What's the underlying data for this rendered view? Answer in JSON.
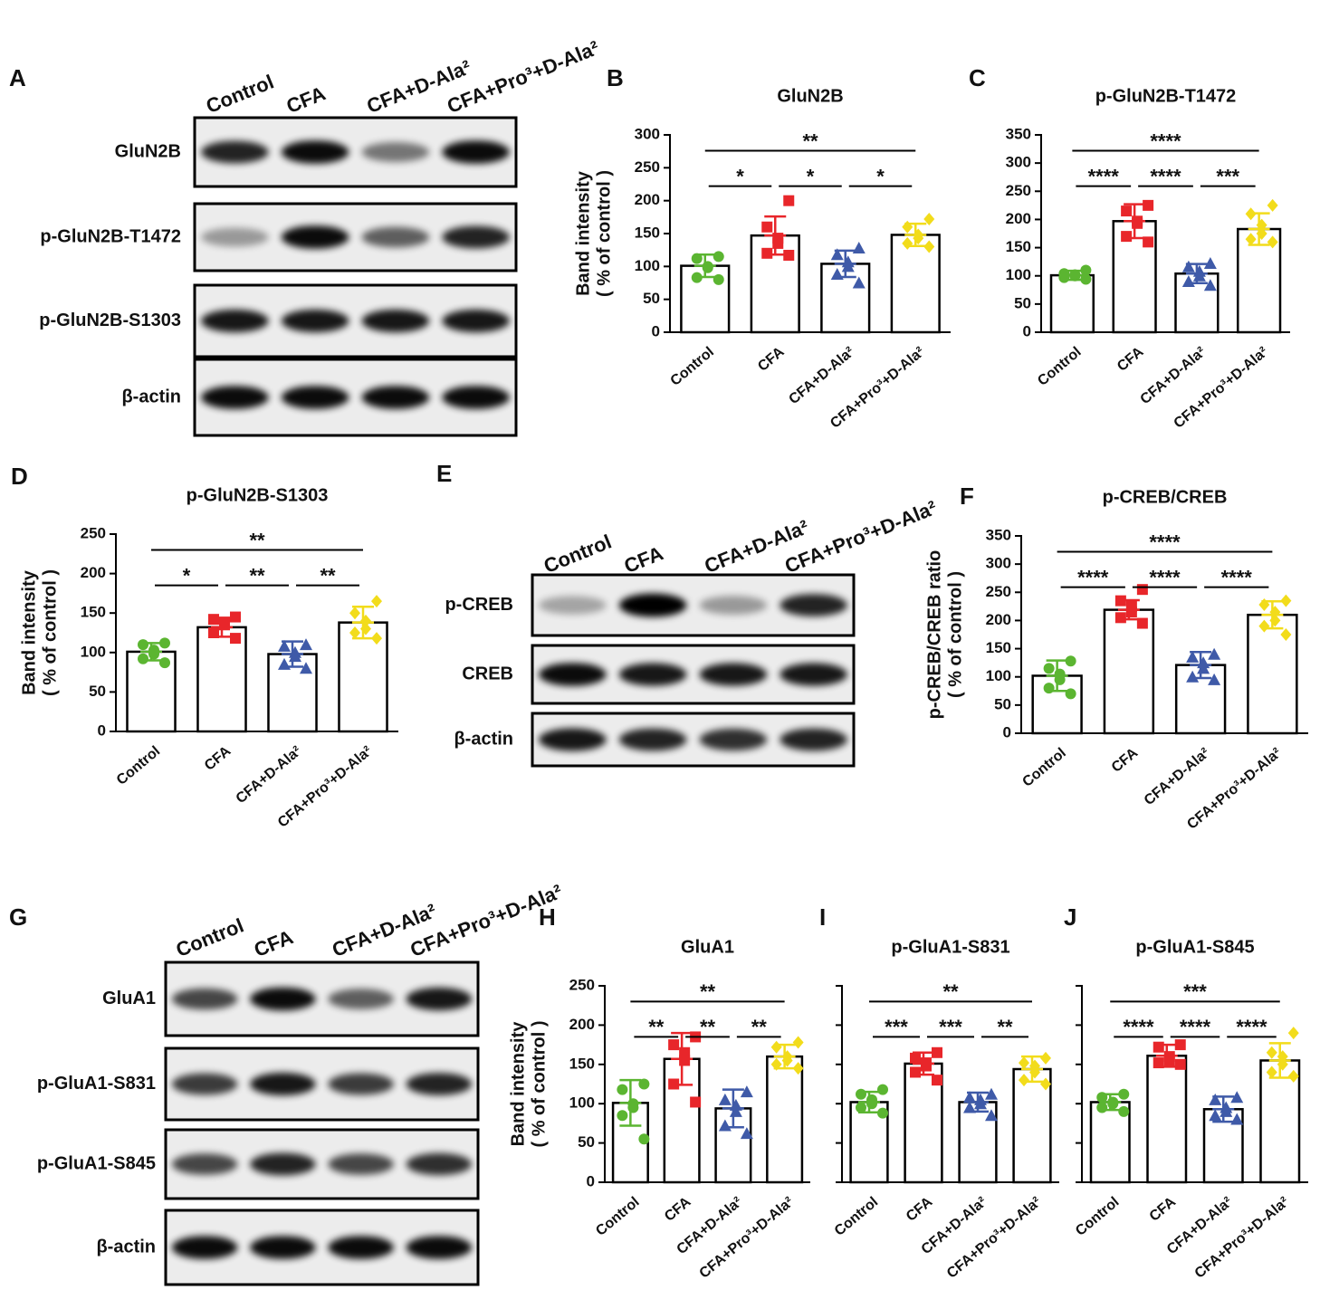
{
  "blots": [
    {
      "letter": "A",
      "columns": [
        "Control",
        "CFA",
        "CFA+D-Ala²",
        "CFA+Pro³+D-Ala²"
      ],
      "rows": [
        "GluN2B",
        "p-GluN2B-T1472",
        "p-GluN2B-S1303",
        "β-actin"
      ]
    },
    {
      "letter": "E",
      "columns": [
        "Control",
        "CFA",
        "CFA+D-Ala²",
        "CFA+Pro³+D-Ala²"
      ],
      "rows": [
        "p-CREB",
        "CREB",
        "β-actin"
      ]
    },
    {
      "letter": "G",
      "columns": [
        "Control",
        "CFA",
        "CFA+D-Ala²",
        "CFA+Pro³+D-Ala²"
      ],
      "rows": [
        "GluA1",
        "p-GluA1-S831",
        "p-GluA1-S845",
        "β-actin"
      ]
    }
  ],
  "chart_data": [
    {
      "type": "bar",
      "letter": "B",
      "title": "GluN2B",
      "ylabel": [
        "Band intensity",
        "( % of control )"
      ],
      "categories": [
        "Control",
        "CFA",
        "CFA+D-Ala²",
        "CFA+Pro³+D-Ala²"
      ],
      "colors": [
        "#5bb531",
        "#e8262a",
        "#3f5aa8",
        "#f2dc1b"
      ],
      "values": [
        101,
        147,
        104,
        148
      ],
      "errors": [
        17,
        29,
        20,
        17
      ],
      "points": [
        [
          115,
          112,
          100,
          98,
          83,
          80
        ],
        [
          200,
          160,
          143,
          135,
          120,
          117
        ],
        [
          128,
          118,
          107,
          100,
          88,
          75
        ],
        [
          172,
          160,
          148,
          143,
          135,
          130
        ]
      ],
      "ylim": [
        0,
        300
      ],
      "yticks": [
        0,
        50,
        100,
        150,
        200,
        250,
        300
      ],
      "annotations": [
        {
          "text": "*",
          "from": 0,
          "to": 1
        },
        {
          "text": "*",
          "from": 1,
          "to": 2
        },
        {
          "text": "*",
          "from": 2,
          "to": 3
        },
        {
          "text": "**",
          "from": 0,
          "to": 3
        }
      ]
    },
    {
      "type": "bar",
      "letter": "C",
      "title": "p-GluN2B-T1472",
      "categories": [
        "Control",
        "CFA",
        "CFA+D-Ala²",
        "CFA+Pro³+D-Ala²"
      ],
      "colors": [
        "#5bb531",
        "#e8262a",
        "#3f5aa8",
        "#f2dc1b"
      ],
      "values": [
        101,
        197,
        104,
        183
      ],
      "errors": [
        8,
        30,
        17,
        28
      ],
      "points": [
        [
          110,
          104,
          102,
          100,
          97,
          94
        ],
        [
          225,
          215,
          197,
          193,
          170,
          160
        ],
        [
          122,
          116,
          108,
          100,
          90,
          83
        ],
        [
          225,
          210,
          190,
          175,
          165,
          160
        ]
      ],
      "ylim": [
        0,
        350
      ],
      "yticks": [
        0,
        50,
        100,
        150,
        200,
        250,
        300,
        350
      ],
      "annotations": [
        {
          "text": "****",
          "from": 0,
          "to": 1
        },
        {
          "text": "****",
          "from": 1,
          "to": 2
        },
        {
          "text": "***",
          "from": 2,
          "to": 3
        },
        {
          "text": "****",
          "from": 0,
          "to": 3
        }
      ]
    },
    {
      "type": "bar",
      "letter": "D",
      "title": "p-GluN2B-S1303",
      "ylabel": [
        "Band intensity",
        "( % of control )"
      ],
      "categories": [
        "Control",
        "CFA",
        "CFA+D-Ala²",
        "CFA+Pro³+D-Ala²"
      ],
      "colors": [
        "#5bb531",
        "#e8262a",
        "#3f5aa8",
        "#f2dc1b"
      ],
      "values": [
        101,
        132,
        98,
        138
      ],
      "errors": [
        11,
        12,
        16,
        20
      ],
      "points": [
        [
          112,
          110,
          103,
          98,
          92,
          87
        ],
        [
          145,
          142,
          138,
          135,
          125,
          118
        ],
        [
          110,
          108,
          100,
          95,
          85,
          80
        ],
        [
          165,
          150,
          140,
          130,
          125,
          118
        ]
      ],
      "ylim": [
        0,
        250
      ],
      "yticks": [
        0,
        50,
        100,
        150,
        200,
        250
      ],
      "annotations": [
        {
          "text": "*",
          "from": 0,
          "to": 1
        },
        {
          "text": "**",
          "from": 1,
          "to": 2
        },
        {
          "text": "**",
          "from": 2,
          "to": 3
        },
        {
          "text": "**",
          "from": 0,
          "to": 3
        }
      ]
    },
    {
      "type": "bar",
      "letter": "F",
      "title": "p-CREB/CREB",
      "ylabel": [
        "p-CREB/CREB ratio",
        "( % of control )"
      ],
      "categories": [
        "Control",
        "CFA",
        "CFA+D-Ala²",
        "CFA+Pro³+D-Ala²"
      ],
      "colors": [
        "#5bb531",
        "#e8262a",
        "#3f5aa8",
        "#f2dc1b"
      ],
      "values": [
        102,
        219,
        121,
        210
      ],
      "errors": [
        27,
        17,
        23,
        24
      ],
      "points": [
        [
          128,
          115,
          105,
          95,
          80,
          70
        ],
        [
          255,
          235,
          225,
          215,
          205,
          195
        ],
        [
          140,
          135,
          125,
          115,
          100,
          95
        ],
        [
          235,
          228,
          215,
          200,
          190,
          175
        ]
      ],
      "ylim": [
        0,
        350
      ],
      "yticks": [
        0,
        50,
        100,
        150,
        200,
        250,
        300,
        350
      ],
      "annotations": [
        {
          "text": "****",
          "from": 0,
          "to": 1
        },
        {
          "text": "****",
          "from": 1,
          "to": 2
        },
        {
          "text": "****",
          "from": 2,
          "to": 3
        },
        {
          "text": "****",
          "from": 0,
          "to": 3
        }
      ]
    },
    {
      "type": "bar",
      "letter": "H",
      "title": "GluA1",
      "ylabel": [
        "Band intensity",
        "( % of control )"
      ],
      "categories": [
        "Control",
        "CFA",
        "CFA+D-Ala²",
        "CFA+Pro³+D-Ala²"
      ],
      "colors": [
        "#5bb531",
        "#e8262a",
        "#3f5aa8",
        "#f2dc1b"
      ],
      "values": [
        101,
        157,
        94,
        160
      ],
      "errors": [
        29,
        33,
        24,
        15
      ],
      "points": [
        [
          125,
          118,
          100,
          95,
          85,
          55
        ],
        [
          185,
          175,
          165,
          155,
          125,
          102
        ],
        [
          115,
          105,
          98,
          90,
          72,
          62
        ],
        [
          178,
          172,
          160,
          155,
          150,
          145
        ]
      ],
      "ylim": [
        0,
        250
      ],
      "yticks": [
        0,
        50,
        100,
        150,
        200,
        250
      ],
      "annotations": [
        {
          "text": "**",
          "from": 0,
          "to": 1
        },
        {
          "text": "**",
          "from": 1,
          "to": 2
        },
        {
          "text": "**",
          "from": 2,
          "to": 3
        },
        {
          "text": "**",
          "from": 0,
          "to": 3
        }
      ]
    },
    {
      "type": "bar",
      "letter": "I",
      "title": "p-GluA1-S831",
      "tick_labels": false,
      "categories": [
        "Control",
        "CFA",
        "CFA+D-Ala²",
        "CFA+Pro³+D-Ala²"
      ],
      "colors": [
        "#5bb531",
        "#e8262a",
        "#3f5aa8",
        "#f2dc1b"
      ],
      "values": [
        102,
        151,
        102,
        144
      ],
      "errors": [
        13,
        14,
        12,
        16
      ],
      "points": [
        [
          118,
          112,
          105,
          100,
          95,
          88
        ],
        [
          165,
          158,
          152,
          148,
          140,
          130
        ],
        [
          112,
          108,
          105,
          100,
          95,
          85
        ],
        [
          158,
          152,
          148,
          140,
          130,
          125
        ]
      ],
      "ylim": [
        0,
        250
      ],
      "yticks": [
        0,
        50,
        100,
        150,
        200,
        250
      ],
      "annotations": [
        {
          "text": "***",
          "from": 0,
          "to": 1
        },
        {
          "text": "***",
          "from": 1,
          "to": 2
        },
        {
          "text": "**",
          "from": 2,
          "to": 3
        },
        {
          "text": "**",
          "from": 0,
          "to": 3
        }
      ]
    },
    {
      "type": "bar",
      "letter": "J",
      "title": "p-GluA1-S845",
      "tick_labels": false,
      "categories": [
        "Control",
        "CFA",
        "CFA+D-Ala²",
        "CFA+Pro³+D-Ala²"
      ],
      "colors": [
        "#5bb531",
        "#e8262a",
        "#3f5aa8",
        "#f2dc1b"
      ],
      "values": [
        102,
        161,
        93,
        155
      ],
      "errors": [
        10,
        14,
        16,
        22
      ],
      "points": [
        [
          112,
          108,
          102,
          100,
          95,
          90
        ],
        [
          175,
          172,
          160,
          155,
          152,
          150
        ],
        [
          108,
          105,
          95,
          90,
          85,
          80
        ],
        [
          190,
          165,
          160,
          150,
          140,
          135
        ]
      ],
      "ylim": [
        0,
        250
      ],
      "yticks": [
        0,
        50,
        100,
        150,
        200,
        250
      ],
      "annotations": [
        {
          "text": "****",
          "from": 0,
          "to": 1
        },
        {
          "text": "****",
          "from": 1,
          "to": 2
        },
        {
          "text": "****",
          "from": 2,
          "to": 3
        },
        {
          "text": "***",
          "from": 0,
          "to": 3
        }
      ]
    }
  ]
}
